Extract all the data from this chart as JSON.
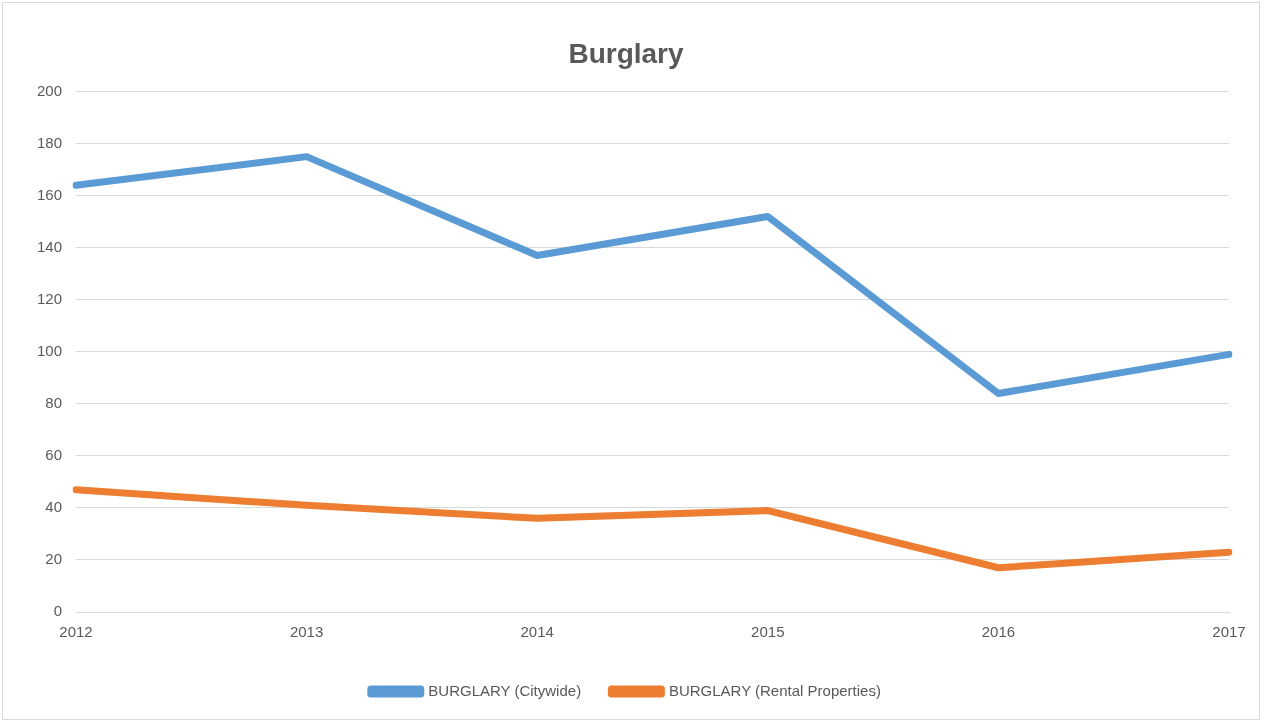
{
  "chart_data": {
    "type": "line",
    "title": "Burglary",
    "categories": [
      "2012",
      "2013",
      "2014",
      "2015",
      "2016",
      "2017"
    ],
    "series": [
      {
        "name": "BURGLARY (Citywide)",
        "color": "#5b9bd5",
        "values": [
          164,
          175,
          137,
          152,
          84,
          99
        ]
      },
      {
        "name": "BURGLARY (Rental Properties)",
        "color": "#ed7d31",
        "values": [
          47,
          41,
          36,
          39,
          17,
          23
        ]
      }
    ],
    "ylim": [
      0,
      200
    ],
    "yticks": [
      0,
      20,
      40,
      60,
      80,
      100,
      120,
      140,
      160,
      180,
      200
    ],
    "grid": "y",
    "legend": "bottom",
    "marker": "none",
    "line_style": "solid"
  }
}
